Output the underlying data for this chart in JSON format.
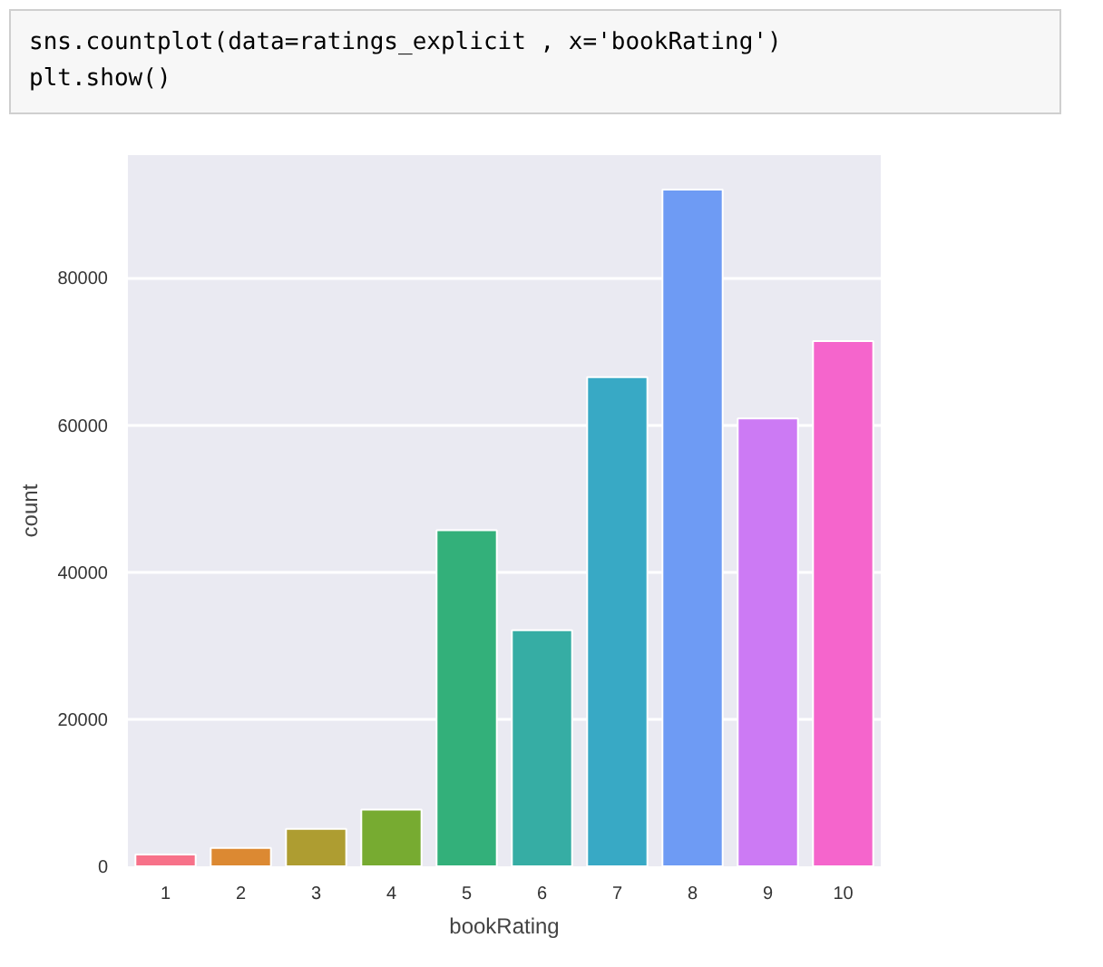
{
  "chart_data": {
    "type": "bar",
    "annotations": [
      "sns.countplot(data=ratings_explicit , x='bookRating')",
      "plt.show()"
    ],
    "xlabel": "bookRating",
    "ylabel": "count",
    "categories": [
      "1",
      "2",
      "3",
      "4",
      "5",
      "6",
      "7",
      "8",
      "9",
      "10"
    ],
    "values": [
      1600,
      2500,
      5100,
      7700,
      45700,
      32100,
      66500,
      92000,
      60900,
      71400
    ],
    "colors": [
      "#f77189",
      "#dc8932",
      "#ae9d31",
      "#77ab31",
      "#33b07a",
      "#36ada4",
      "#38a9c5",
      "#6e9bf4",
      "#cc7af4",
      "#f565cc"
    ],
    "ylim": [
      0,
      96700
    ],
    "yticks": [
      0,
      20000,
      40000,
      60000,
      80000
    ],
    "grid": "y"
  }
}
